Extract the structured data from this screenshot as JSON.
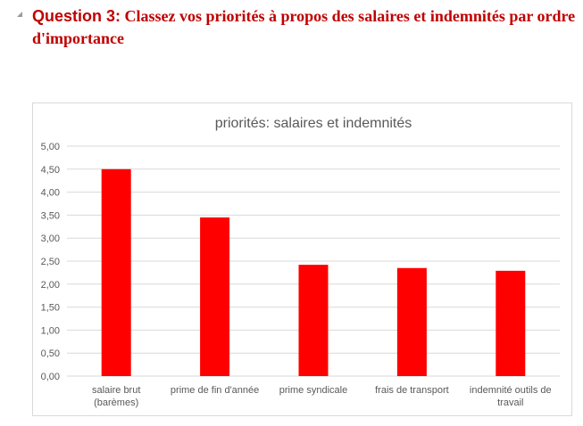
{
  "question": {
    "lead": "Question 3:",
    "text": " Classez vos priorités à propos des salaires et indemnités par ordre d'importance"
  },
  "chart_data": {
    "type": "bar",
    "title": "priorités: salaires et indemnités",
    "xlabel": "",
    "ylabel": "",
    "categories": [
      "salaire brut (barèmes)",
      "prime de fin d'année",
      "prime syndicale",
      "frais de transport",
      "indemnité outils de travail"
    ],
    "values": [
      4.5,
      3.45,
      2.42,
      2.35,
      2.29
    ],
    "ylim": [
      0,
      5
    ],
    "yticks": [
      "0,00",
      "0,50",
      "1,00",
      "1,50",
      "2,00",
      "2,50",
      "3,00",
      "3,50",
      "4,00",
      "4,50",
      "5,00"
    ],
    "bar_color": "#ff0000",
    "grid": true,
    "legend": "none"
  }
}
